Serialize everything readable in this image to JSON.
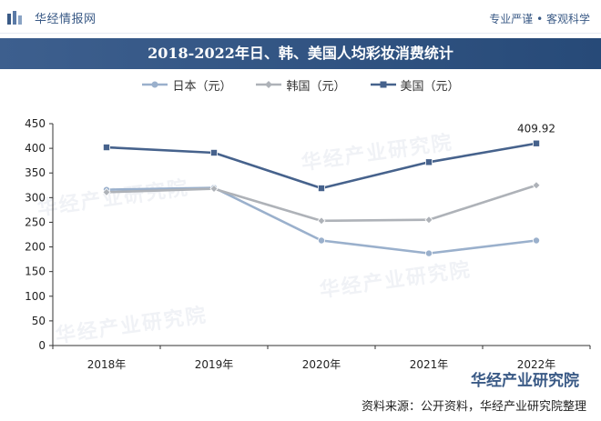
{
  "header": {
    "brand_name": "华经情报网",
    "slogan": "专业严谨 • 客观科学"
  },
  "chart_data": {
    "type": "line",
    "title": "2018-2022年日、韩、美国人均彩妆消费统计",
    "categories": [
      "2018年",
      "2019年",
      "2020年",
      "2021年",
      "2022年"
    ],
    "ylim": [
      0,
      450
    ],
    "yticks": [
      0,
      50,
      100,
      150,
      200,
      250,
      300,
      350,
      400,
      450
    ],
    "grid": false,
    "legend_position": "top",
    "series": [
      {
        "name": "日本（元）",
        "values": [
          316,
          320,
          213,
          187,
          213
        ],
        "color": "#9ab0cc",
        "marker": "circle"
      },
      {
        "name": "韩国（元）",
        "values": [
          311,
          318,
          253,
          255,
          325
        ],
        "color": "#aeb2b8",
        "marker": "diamond"
      },
      {
        "name": "美国（元）",
        "values": [
          402,
          391,
          319,
          372,
          409.92
        ],
        "color": "#46628c",
        "marker": "square"
      }
    ],
    "annotations": [
      {
        "series": "美国（元）",
        "category": "2022年",
        "label": "409.92"
      }
    ]
  },
  "watermark": {
    "text": "华经产业研究院"
  },
  "footer": {
    "brand": "华经产业研究院",
    "source": "资料来源：公开资料，华经产业研究院整理"
  }
}
